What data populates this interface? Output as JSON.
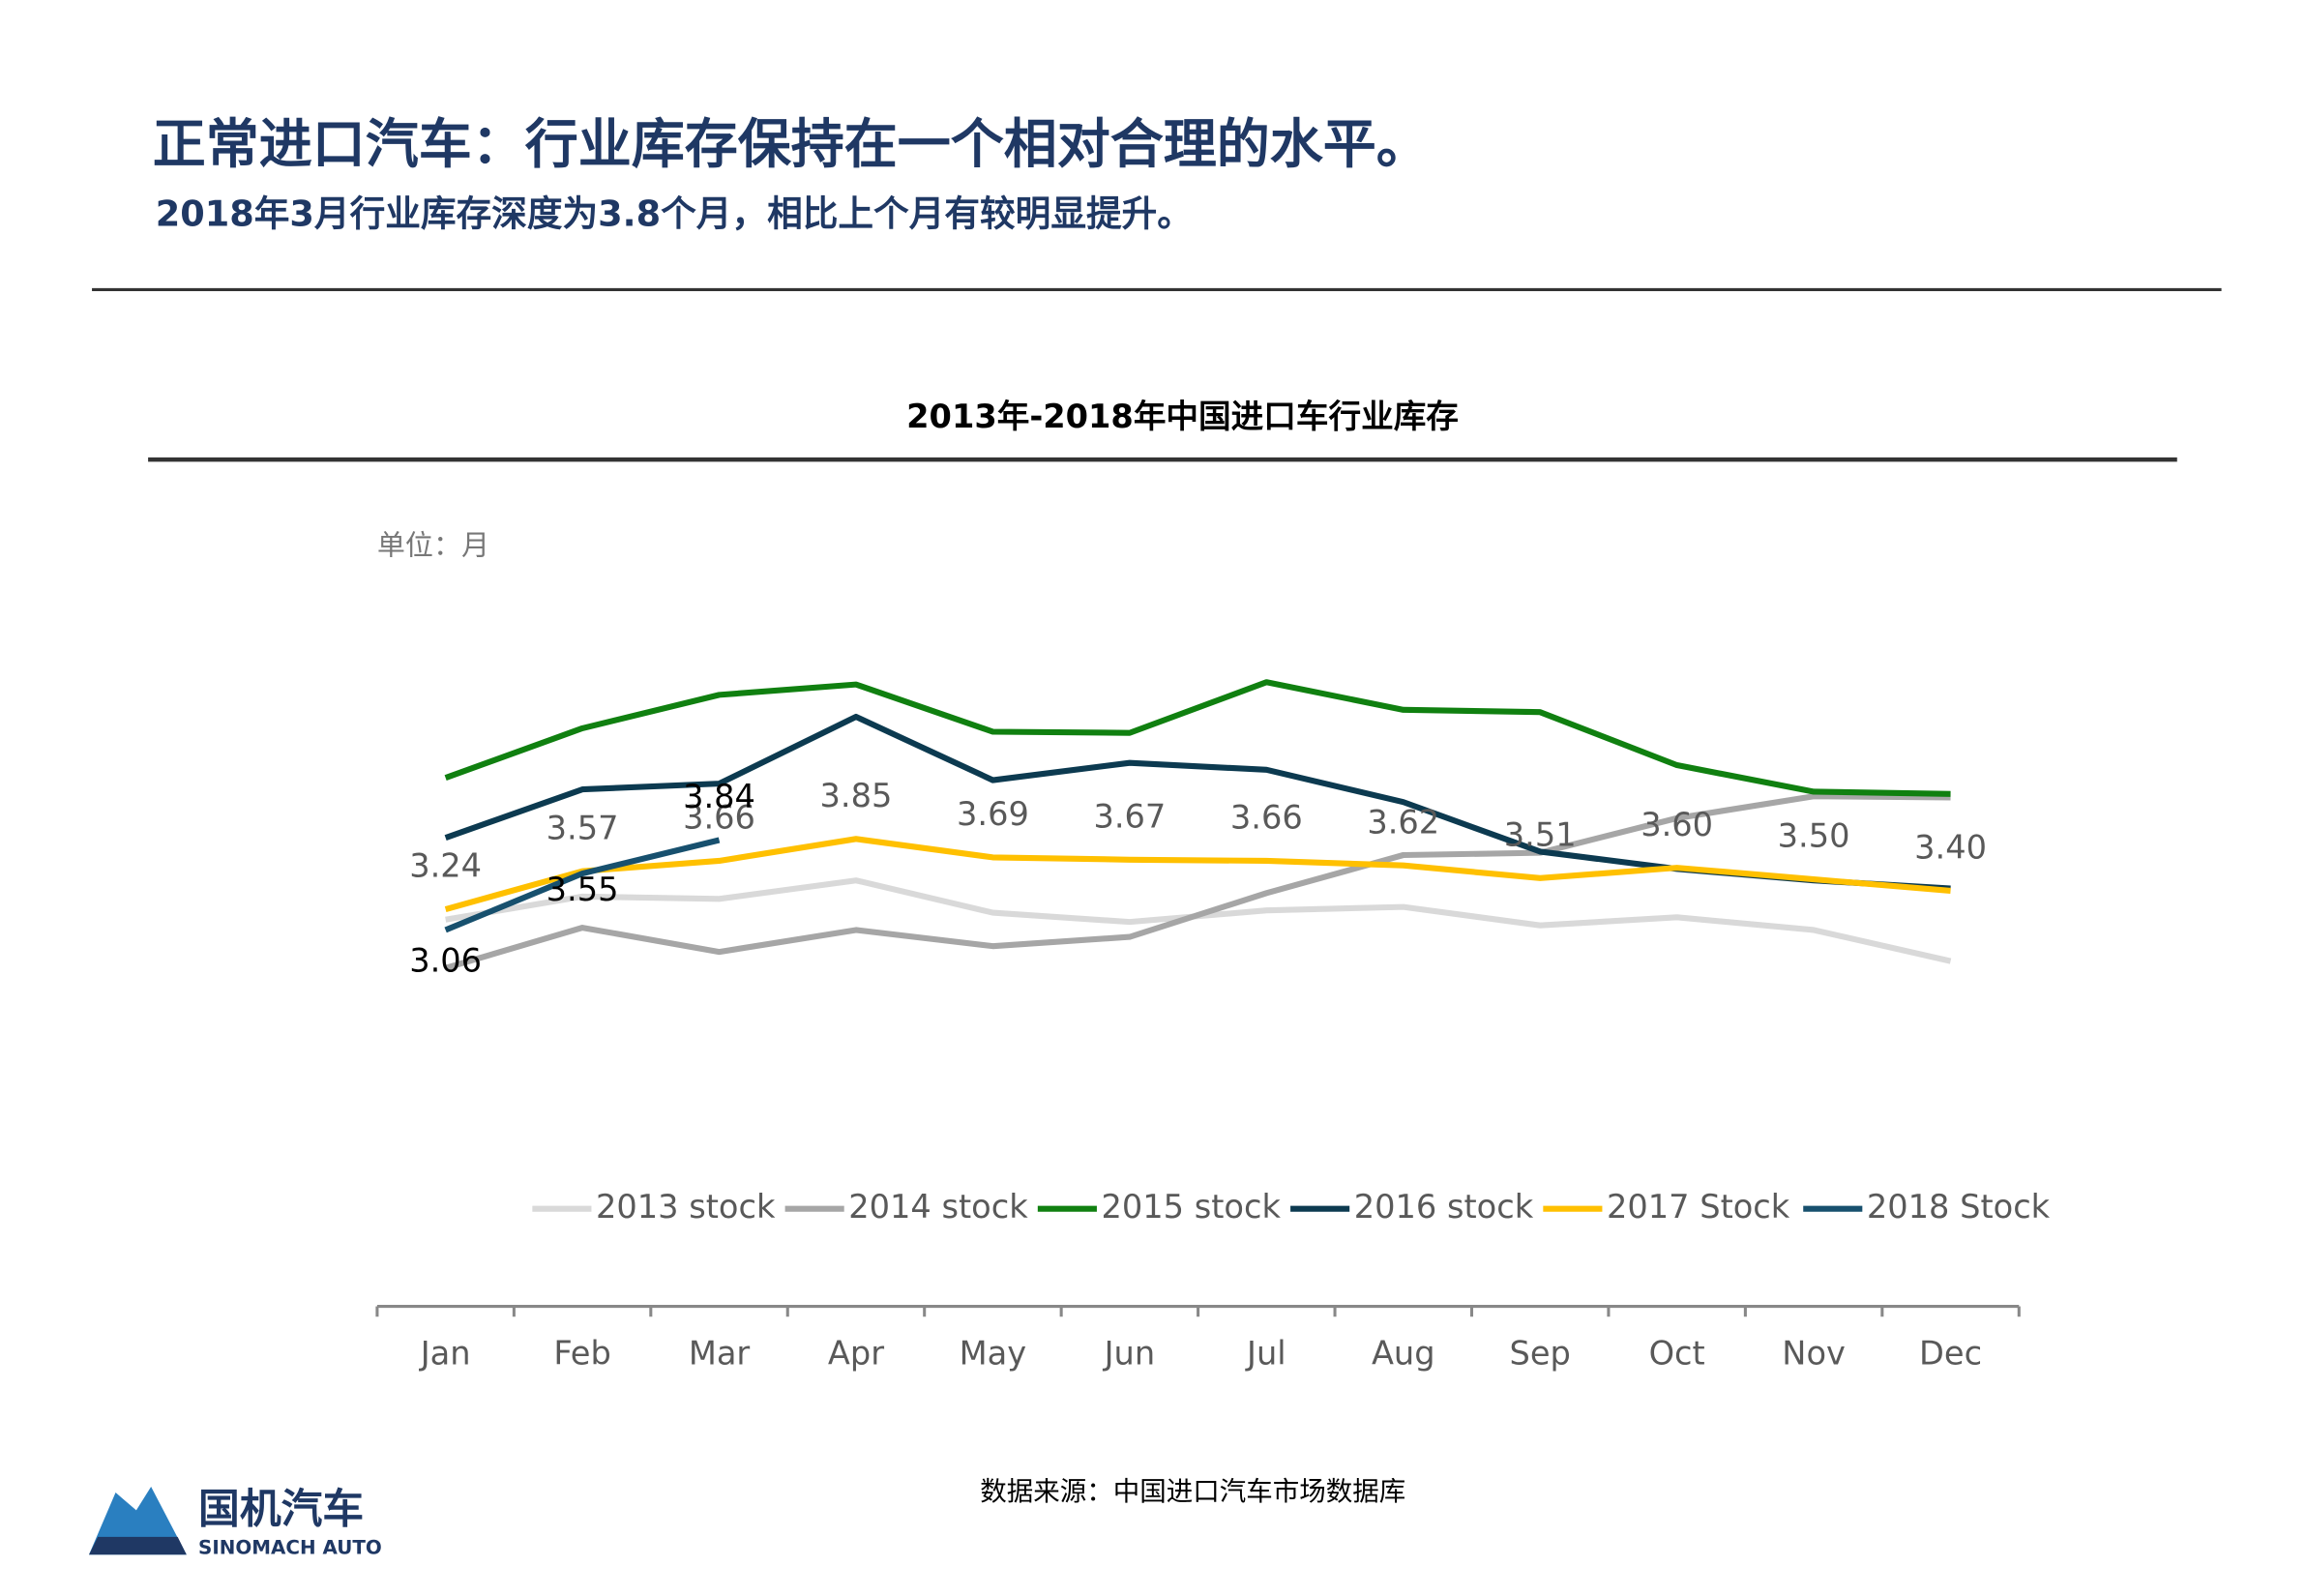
{
  "header": {
    "title": "正常进口汽车：行业库存保持在一个相对合理的水平。",
    "subtitle": "2018年3月行业库存深度为3.8个月，相比上个月有较明显提升。"
  },
  "chart_data": {
    "type": "line",
    "title": "2013年-2018年中国进口车行业库存",
    "unit_label": "单位：月",
    "categories": [
      "Jan",
      "Feb",
      "Mar",
      "Apr",
      "May",
      "Jun",
      "Jul",
      "Aug",
      "Sep",
      "Oct",
      "Nov",
      "Dec"
    ],
    "ylim": [
      1,
      6
    ],
    "series": [
      {
        "name": "2013 stock",
        "color": "#d9d9d9",
        "values": [
          3.15,
          3.35,
          3.33,
          3.49,
          3.21,
          3.13,
          3.23,
          3.26,
          3.1,
          3.17,
          3.06,
          2.79
        ]
      },
      {
        "name": "2014 stock",
        "color": "#a6a6a6",
        "values": [
          2.73,
          3.08,
          2.87,
          3.06,
          2.92,
          3.0,
          3.38,
          3.71,
          3.73,
          4.03,
          4.22,
          4.21
        ]
      },
      {
        "name": "2015 stock",
        "color": "#108010",
        "values": [
          4.38,
          4.81,
          5.1,
          5.19,
          4.78,
          4.77,
          5.21,
          4.97,
          4.95,
          4.49,
          4.26,
          4.24
        ]
      },
      {
        "name": "2016 stock",
        "color": "#0c3a50",
        "values": [
          3.86,
          4.28,
          4.33,
          4.91,
          4.36,
          4.51,
          4.45,
          4.17,
          3.74,
          3.59,
          3.49,
          3.42
        ]
      },
      {
        "name": "2017 Stock",
        "color": "#ffc000",
        "values": [
          3.24,
          3.57,
          3.66,
          3.85,
          3.69,
          3.67,
          3.66,
          3.62,
          3.51,
          3.6,
          3.5,
          3.4
        ],
        "value_labels": [
          "3.24",
          "3.57",
          "3.66",
          "3.85",
          "3.69",
          "3.67",
          "3.66",
          "3.62",
          "3.51",
          "3.60",
          "3.50",
          "3.40"
        ]
      },
      {
        "name": "2018 Stock",
        "color": "#17506e",
        "values": [
          3.06,
          3.55,
          3.84,
          null,
          null,
          null,
          null,
          null,
          null,
          null,
          null,
          null
        ],
        "value_labels": [
          "3.06",
          "3.55",
          "3.84",
          null,
          null,
          null,
          null,
          null,
          null,
          null,
          null,
          null
        ]
      }
    ],
    "source": "数据来源：中国进口汽车市场数据库"
  },
  "logo": {
    "name": "国机汽车",
    "english": "SINOMACH AUTO"
  }
}
